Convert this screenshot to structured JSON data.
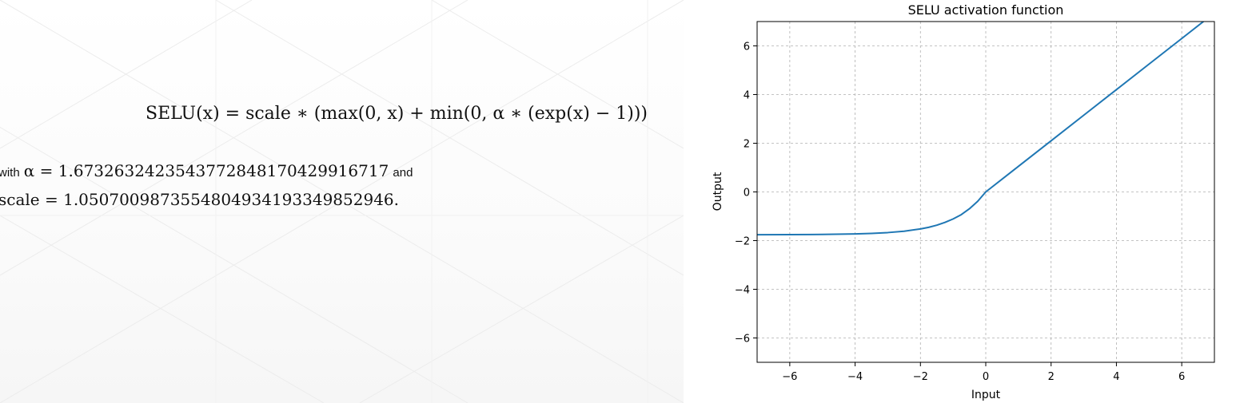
{
  "formula": {
    "text": "SELU(x) = scale ∗ (max(0, x) + min(0, α ∗ (exp(x) − 1)))"
  },
  "notes": {
    "alpha_prefix": "with",
    "alpha_expr": "α = 1.6732632423543772848170429916717",
    "alpha_suffix": "and",
    "scale_expr": "scale = 1.0507009873554804934193349852946."
  },
  "colors": {
    "line": "#1f77b4",
    "grid": "#b0b0b0",
    "axes": "#000000"
  },
  "chart_data": {
    "type": "line",
    "title": "SELU activation function",
    "xlabel": "Input",
    "ylabel": "Output",
    "xlim": [
      -7,
      7
    ],
    "ylim": [
      -7,
      7
    ],
    "xticks": [
      -6,
      -4,
      -2,
      0,
      2,
      4,
      6
    ],
    "yticks": [
      -6,
      -4,
      -2,
      0,
      2,
      4,
      6
    ],
    "grid": true,
    "series": [
      {
        "x": [
          -7,
          -6,
          -5,
          -4,
          -3.5,
          -3,
          -2.5,
          -2,
          -1.75,
          -1.5,
          -1.25,
          -1,
          -0.75,
          -0.5,
          -0.25,
          0,
          1,
          2,
          3,
          4,
          5,
          6,
          7
        ],
        "y": [
          -1.757,
          -1.754,
          -1.746,
          -1.726,
          -1.705,
          -1.67,
          -1.614,
          -1.52,
          -1.454,
          -1.367,
          -1.253,
          -1.111,
          -0.933,
          -0.692,
          -0.389,
          0,
          1.051,
          2.101,
          3.152,
          4.203,
          5.254,
          6.304,
          7.355
        ]
      }
    ]
  }
}
